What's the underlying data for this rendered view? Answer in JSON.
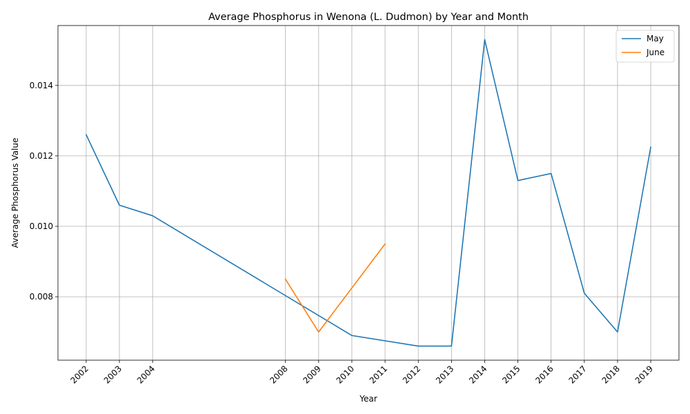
{
  "chart_data": {
    "type": "line",
    "title": "Average Phosphorus in Wenona (L. Dudmon) by Year and Month",
    "xlabel": "Year",
    "ylabel": "Average Phosphorus Value",
    "xticks": [
      2002,
      2003,
      2004,
      2008,
      2009,
      2010,
      2011,
      2012,
      2013,
      2014,
      2015,
      2016,
      2017,
      2018,
      2019
    ],
    "yticks": [
      0.008,
      0.01,
      0.012,
      0.014
    ],
    "ytick_labels": [
      "0.008",
      "0.010",
      "0.012",
      "0.014"
    ],
    "xlim": [
      2001.15,
      2019.85
    ],
    "ylim": [
      0.0062,
      0.0157
    ],
    "grid": true,
    "legend_position": "top-right",
    "series": [
      {
        "name": "May",
        "color": "#1f77b4",
        "x": [
          2002,
          2003,
          2004,
          2010,
          2012,
          2013,
          2014,
          2015,
          2016,
          2017,
          2018,
          2019
        ],
        "y": [
          0.0126,
          0.0106,
          0.0103,
          0.0069,
          0.0066,
          0.0066,
          0.0153,
          0.0113,
          0.0115,
          0.0081,
          0.007,
          0.01225
        ]
      },
      {
        "name": "June",
        "color": "#ff7f0e",
        "x": [
          2008,
          2009,
          2011
        ],
        "y": [
          0.0085,
          0.007,
          0.0095
        ]
      }
    ]
  }
}
